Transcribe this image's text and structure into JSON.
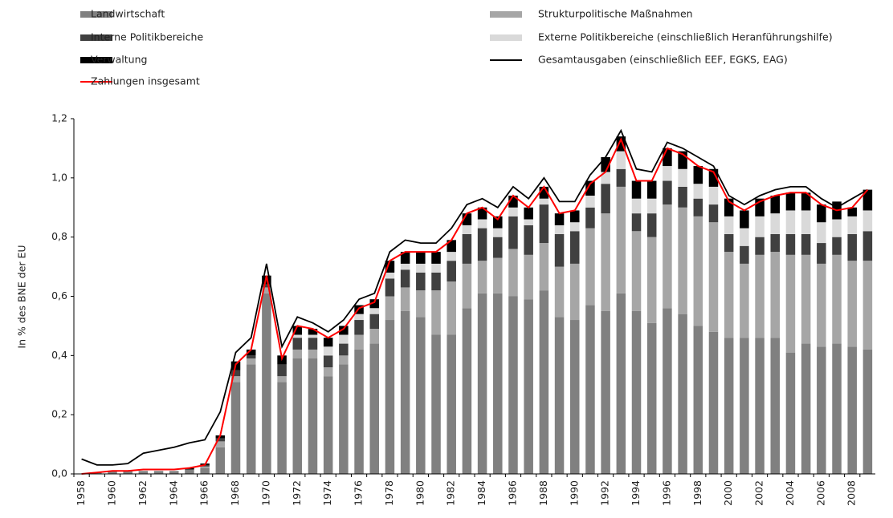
{
  "chart_data": {
    "type": "bar",
    "y_label": "In % des BNE der EU",
    "categories": [
      "1958",
      null,
      "1960",
      null,
      "1962",
      null,
      "1964",
      null,
      "1966",
      null,
      "1968",
      null,
      "1970",
      null,
      "1972",
      null,
      "1974",
      null,
      "1976",
      null,
      "1978",
      null,
      "1980",
      null,
      "1982",
      null,
      "1984",
      null,
      "1986",
      null,
      "1988",
      null,
      "1990",
      null,
      "1992",
      null,
      "1994",
      null,
      "1996",
      null,
      "1998",
      null,
      "2000",
      null,
      "2002",
      null,
      "2004",
      null,
      "2006",
      null,
      "2008",
      null
    ],
    "ylim": [
      0,
      1.2
    ],
    "yticks": [
      {
        "value": 0,
        "label": "0,0"
      },
      {
        "value": 0.2,
        "label": "0,2"
      },
      {
        "value": 0.4,
        "label": "0,4"
      },
      {
        "value": 0.6,
        "label": "0,6"
      },
      {
        "value": 0.8,
        "label": "0,8"
      },
      {
        "value": 1.0,
        "label": "1,0"
      },
      {
        "value": 1.2,
        "label": "1,2"
      }
    ],
    "series": [
      {
        "name": "Landwirtschaft",
        "color": "#808080",
        "type": "bar",
        "values": [
          0,
          0.005,
          0.01,
          0.01,
          0.01,
          0.01,
          0.01,
          0.015,
          0.02,
          0.09,
          0.31,
          0.37,
          0.61,
          0.31,
          0.39,
          0.39,
          0.33,
          0.37,
          0.42,
          0.44,
          0.52,
          0.55,
          0.53,
          0.47,
          0.47,
          0.56,
          0.61,
          0.61,
          0.6,
          0.59,
          0.62,
          0.53,
          0.52,
          0.57,
          0.55,
          0.61,
          0.55,
          0.51,
          0.56,
          0.54,
          0.5,
          0.48,
          0.46,
          0.46,
          0.46,
          0.46,
          0.41,
          0.44,
          0.43,
          0.44,
          0.43,
          0.42
        ]
      },
      {
        "name": "Strukturpolitische Maßnahmen",
        "color": "#a6a6a6",
        "type": "bar",
        "values": [
          0,
          0,
          0,
          0,
          0,
          0,
          0,
          0,
          0.005,
          0.02,
          0.02,
          0.02,
          0.02,
          0.02,
          0.03,
          0.03,
          0.03,
          0.03,
          0.05,
          0.05,
          0.08,
          0.08,
          0.09,
          0.15,
          0.18,
          0.15,
          0.11,
          0.12,
          0.16,
          0.15,
          0.16,
          0.17,
          0.19,
          0.26,
          0.33,
          0.36,
          0.27,
          0.29,
          0.35,
          0.36,
          0.37,
          0.37,
          0.29,
          0.25,
          0.28,
          0.29,
          0.33,
          0.3,
          0.28,
          0.3,
          0.29,
          0.3
        ]
      },
      {
        "name": "Interne Politikbereiche",
        "color": "#404040",
        "type": "bar",
        "values": [
          0,
          0,
          0,
          0,
          0,
          0,
          0,
          0,
          0.005,
          0.01,
          0.02,
          0.01,
          0.01,
          0.04,
          0.04,
          0.04,
          0.04,
          0.04,
          0.05,
          0.05,
          0.06,
          0.06,
          0.06,
          0.06,
          0.07,
          0.1,
          0.11,
          0.07,
          0.11,
          0.1,
          0.13,
          0.11,
          0.11,
          0.07,
          0.1,
          0.06,
          0.06,
          0.08,
          0.08,
          0.07,
          0.06,
          0.06,
          0.06,
          0.06,
          0.06,
          0.06,
          0.07,
          0.07,
          0.07,
          0.06,
          0.09,
          0.1
        ]
      },
      {
        "name": "Externe Politikbereiche (einschließlich Heranführungshilfe)",
        "color": "#d9d9d9",
        "type": "bar",
        "values": [
          0,
          0,
          0,
          0,
          0,
          0,
          0,
          0,
          0,
          0,
          0,
          0,
          0,
          0,
          0.01,
          0.01,
          0.03,
          0.03,
          0.02,
          0.02,
          0.02,
          0.02,
          0.03,
          0.03,
          0.03,
          0.03,
          0.03,
          0.03,
          0.03,
          0.02,
          0.02,
          0.03,
          0.03,
          0.04,
          0.04,
          0.06,
          0.05,
          0.05,
          0.05,
          0.06,
          0.05,
          0.06,
          0.06,
          0.06,
          0.07,
          0.07,
          0.08,
          0.08,
          0.07,
          0.06,
          0.06,
          0.07
        ]
      },
      {
        "name": "Verwaltung",
        "color": "#000000",
        "type": "bar",
        "values": [
          0,
          0,
          0,
          0,
          0,
          0,
          0,
          0.005,
          0.005,
          0.01,
          0.03,
          0.02,
          0.03,
          0.03,
          0.03,
          0.02,
          0.03,
          0.03,
          0.03,
          0.03,
          0.04,
          0.04,
          0.04,
          0.04,
          0.04,
          0.04,
          0.04,
          0.04,
          0.04,
          0.04,
          0.04,
          0.04,
          0.04,
          0.05,
          0.05,
          0.05,
          0.06,
          0.06,
          0.06,
          0.06,
          0.06,
          0.06,
          0.06,
          0.06,
          0.06,
          0.06,
          0.06,
          0.06,
          0.06,
          0.06,
          0.03,
          0.07
        ]
      },
      {
        "name": "Gesamtausgaben (einschließlich EEF, EGKS, EAG)",
        "color": "#000000",
        "type": "line",
        "values": [
          0.05,
          0.03,
          0.03,
          0.035,
          0.07,
          0.08,
          0.09,
          0.105,
          0.115,
          0.21,
          0.41,
          0.46,
          0.71,
          0.43,
          0.53,
          0.51,
          0.48,
          0.52,
          0.59,
          0.61,
          0.75,
          0.79,
          0.78,
          0.78,
          0.83,
          0.91,
          0.93,
          0.9,
          0.97,
          0.93,
          1.0,
          0.92,
          0.92,
          1.01,
          1.07,
          1.16,
          1.03,
          1.02,
          1.12,
          1.1,
          1.07,
          1.04,
          0.94,
          0.91,
          0.94,
          0.96,
          0.97,
          0.97,
          0.93,
          0.9,
          0.93,
          0.96
        ]
      },
      {
        "name": "Zahlungen insgesamt",
        "color": "#ff0000",
        "type": "line",
        "values": [
          0,
          0.005,
          0.01,
          0.01,
          0.015,
          0.015,
          0.015,
          0.02,
          0.03,
          0.13,
          0.37,
          0.42,
          0.67,
          0.39,
          0.5,
          0.49,
          0.46,
          0.49,
          0.56,
          0.58,
          0.72,
          0.75,
          0.75,
          0.75,
          0.79,
          0.88,
          0.9,
          0.86,
          0.94,
          0.9,
          0.97,
          0.88,
          0.89,
          0.98,
          1.02,
          1.13,
          0.99,
          0.99,
          1.1,
          1.08,
          1.04,
          1.02,
          0.92,
          0.89,
          0.92,
          0.94,
          0.95,
          0.95,
          0.91,
          0.89,
          0.9,
          0.96
        ]
      }
    ]
  }
}
